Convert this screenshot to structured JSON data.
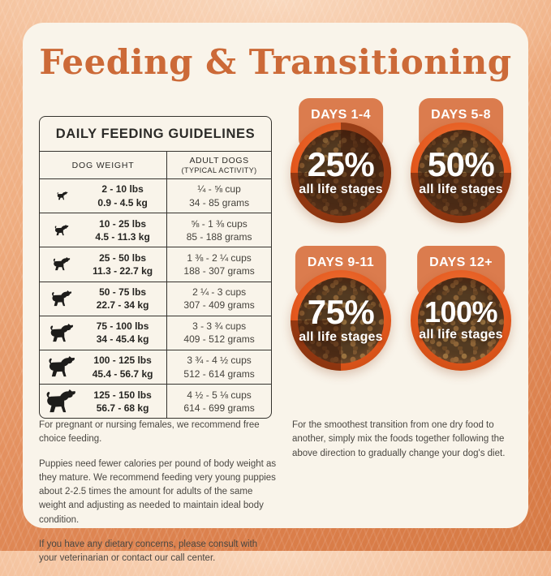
{
  "page": {
    "title": "Feeding & Transitioning"
  },
  "table": {
    "title": "DAILY FEEDING GUIDELINES",
    "col1_header": "DOG WEIGHT",
    "col2_header_line1": "ADULT DOGS",
    "col2_header_line2": "(TYPICAL ACTIVITY)",
    "rows": [
      {
        "lbs": "2 - 10 lbs",
        "kg": "0.9 - 4.5 kg",
        "cups": "¼ - ⅝ cup",
        "grams": "34 - 85 grams"
      },
      {
        "lbs": "10 - 25 lbs",
        "kg": "4.5 - 11.3 kg",
        "cups": "⅝ - 1 ⅜ cups",
        "grams": "85 - 188 grams"
      },
      {
        "lbs": "25 - 50 lbs",
        "kg": "11.3 - 22.7 kg",
        "cups": "1 ⅜ - 2 ¼ cups",
        "grams": "188 - 307 grams"
      },
      {
        "lbs": "50 - 75 lbs",
        "kg": "22.7 - 34 kg",
        "cups": "2 ¼ - 3 cups",
        "grams": "307 - 409 grams"
      },
      {
        "lbs": "75 - 100 lbs",
        "kg": "34 - 45.4 kg",
        "cups": "3 - 3 ¾ cups",
        "grams": "409 - 512 grams"
      },
      {
        "lbs": "100 - 125 lbs",
        "kg": "45.4 - 56.7 kg",
        "cups": "3 ¾ - 4 ½ cups",
        "grams": "512 - 614 grams"
      },
      {
        "lbs": "125 - 150 lbs",
        "kg": "56.7 - 68 kg",
        "cups": "4 ½ - 5 ⅛ cups",
        "grams": "614 - 699 grams"
      }
    ]
  },
  "transition": {
    "steps": [
      {
        "days": "DAYS 1-4",
        "percent": "25%",
        "label": "all life stages",
        "fraction": 25
      },
      {
        "days": "DAYS 5-8",
        "percent": "50%",
        "label": "all life stages",
        "fraction": 50
      },
      {
        "days": "DAYS 9-11",
        "percent": "75%",
        "label": "all life stages",
        "fraction": 75
      },
      {
        "days": "DAYS 12+",
        "percent": "100%",
        "label": "all life stages",
        "fraction": 100
      }
    ]
  },
  "notes": {
    "left": [
      "For pregnant or nursing females, we recommend free choice feeding.",
      "Puppies need fewer calories per pound of body weight as they mature. We recommend feeding very young puppies about 2-2.5 times the amount for adults of the same weight and adjusting as needed to maintain ideal body condition.",
      "If you have any dietary concerns, please consult with your veterinarian or contact our call center."
    ],
    "right": "For the smoothest transition from one dry food to another, simply mix the foods together following the above direction to gradually change your dog's diet."
  },
  "colors": {
    "accent_orange": "#cc6a38",
    "card_cream": "#f9f4ea",
    "badge_orange": "#db7c4e",
    "bowl_rim_orange": "#e4581e",
    "table_ink": "#2c2b28",
    "shade_overlay": "rgba(62,22,6,0.47)"
  }
}
